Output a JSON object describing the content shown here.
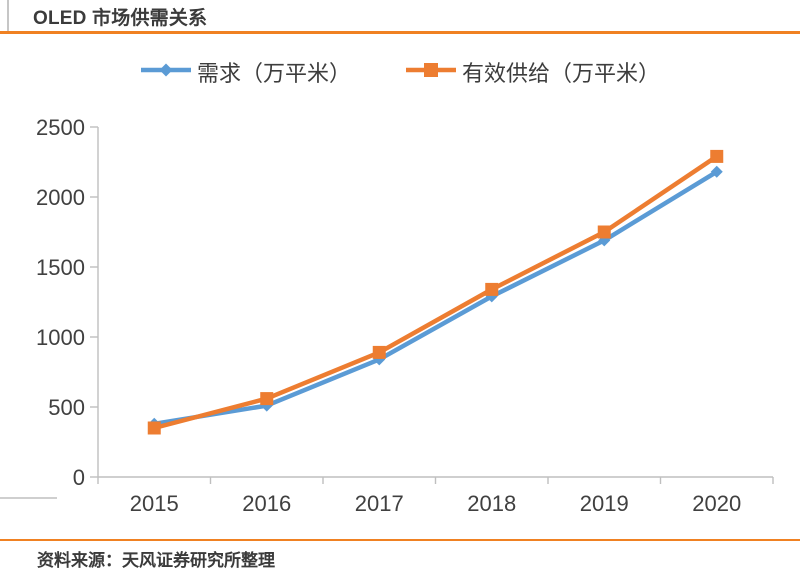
{
  "header": {
    "title": "OLED 市场供需关系"
  },
  "legend": [
    {
      "label": "需求（万平米）",
      "marker": "diamond",
      "color": "#5b9bd5"
    },
    {
      "label": "有效供给（万平米）",
      "marker": "square",
      "color": "#ed7d31"
    }
  ],
  "footer": {
    "source": "资料来源：天风证券研究所整理"
  },
  "colors": {
    "accent_orange_rule": "#f08122",
    "series_demand_blue": "#5b9bd5",
    "series_supply_orange": "#ed7d31",
    "axis_gray": "#bfbfbf",
    "label_gray": "#404040"
  },
  "chart_data": {
    "type": "line",
    "title": "OLED 市场供需关系",
    "categories": [
      "2015",
      "2016",
      "2017",
      "2018",
      "2019",
      "2020"
    ],
    "series": [
      {
        "name": "需求（万平米）",
        "marker": "diamond",
        "color": "#5b9bd5",
        "values": [
          380,
          510,
          840,
          1290,
          1690,
          2180
        ]
      },
      {
        "name": "有效供给（万平米）",
        "marker": "square",
        "color": "#ed7d31",
        "values": [
          350,
          560,
          890,
          1340,
          1750,
          2290
        ]
      }
    ],
    "xlabel": "",
    "ylabel": "",
    "ylim": [
      0,
      2500
    ],
    "yticks": [
      0,
      500,
      1000,
      1500,
      2000,
      2500
    ],
    "grid": false,
    "legend_position": "top"
  }
}
